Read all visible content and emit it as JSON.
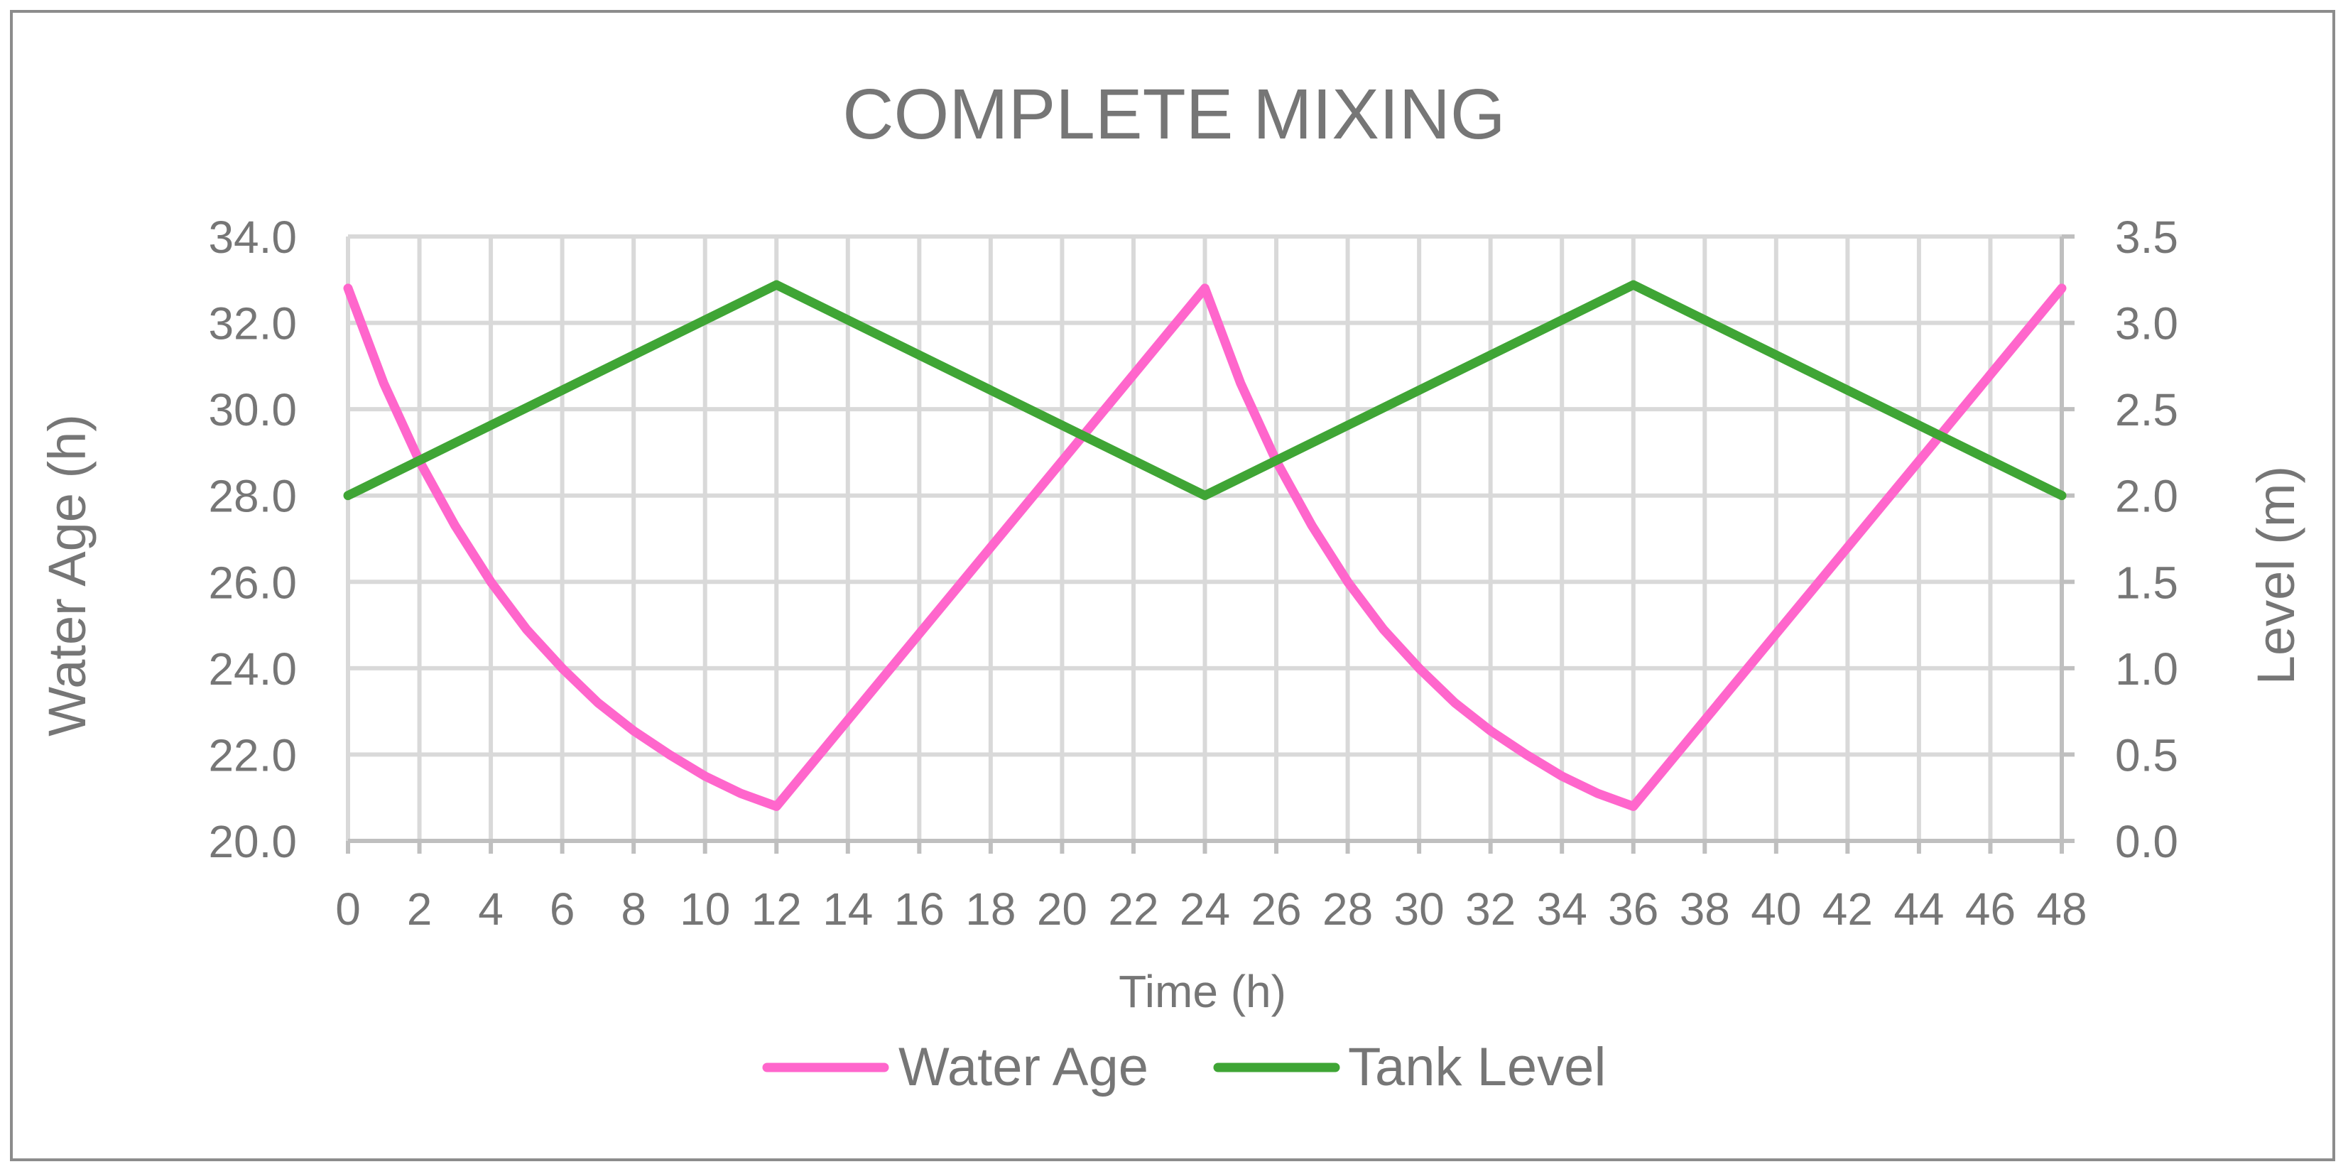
{
  "chart_data": {
    "type": "line",
    "title": "COMPLETE MIXING",
    "xlabel": "Time (h)",
    "ylabel_left": "Water Age (h)",
    "ylabel_right": "Level (m)",
    "x_ticks": [
      "0",
      "2",
      "4",
      "6",
      "8",
      "10",
      "12",
      "14",
      "16",
      "18",
      "20",
      "22",
      "24",
      "26",
      "28",
      "30",
      "32",
      "34",
      "36",
      "38",
      "40",
      "42",
      "44",
      "46",
      "48"
    ],
    "xlim": [
      0,
      48
    ],
    "y_left_ticks": [
      "20.0",
      "22.0",
      "24.0",
      "26.0",
      "28.0",
      "30.0",
      "32.0",
      "34.0"
    ],
    "ylim_left": [
      20,
      34
    ],
    "y_right_ticks": [
      "0.0",
      "0.5",
      "1.0",
      "1.5",
      "2.0",
      "2.5",
      "3.0",
      "3.5"
    ],
    "ylim_right": [
      0,
      3.5
    ],
    "grid": true,
    "legend_position": "bottom",
    "series": [
      {
        "name": "Water Age",
        "axis": "left",
        "color": "#ff66cc",
        "x": [
          0,
          1,
          2,
          3,
          4,
          5,
          6,
          7,
          8,
          9,
          10,
          11,
          12,
          24,
          25,
          26,
          27,
          28,
          29,
          30,
          31,
          32,
          33,
          34,
          35,
          36,
          48
        ],
        "y": [
          32.8,
          30.6,
          28.8,
          27.3,
          26.0,
          24.9,
          24.0,
          23.2,
          22.55,
          22.0,
          21.5,
          21.1,
          20.8,
          32.8,
          30.6,
          28.8,
          27.3,
          26.0,
          24.9,
          24.0,
          23.2,
          22.55,
          22.0,
          21.5,
          21.1,
          20.8,
          32.8
        ]
      },
      {
        "name": "Tank Level",
        "axis": "right",
        "color": "#3fa535",
        "x": [
          0,
          12,
          24,
          36,
          48
        ],
        "y": [
          2.0,
          3.22,
          2.0,
          3.22,
          2.0
        ]
      }
    ]
  }
}
